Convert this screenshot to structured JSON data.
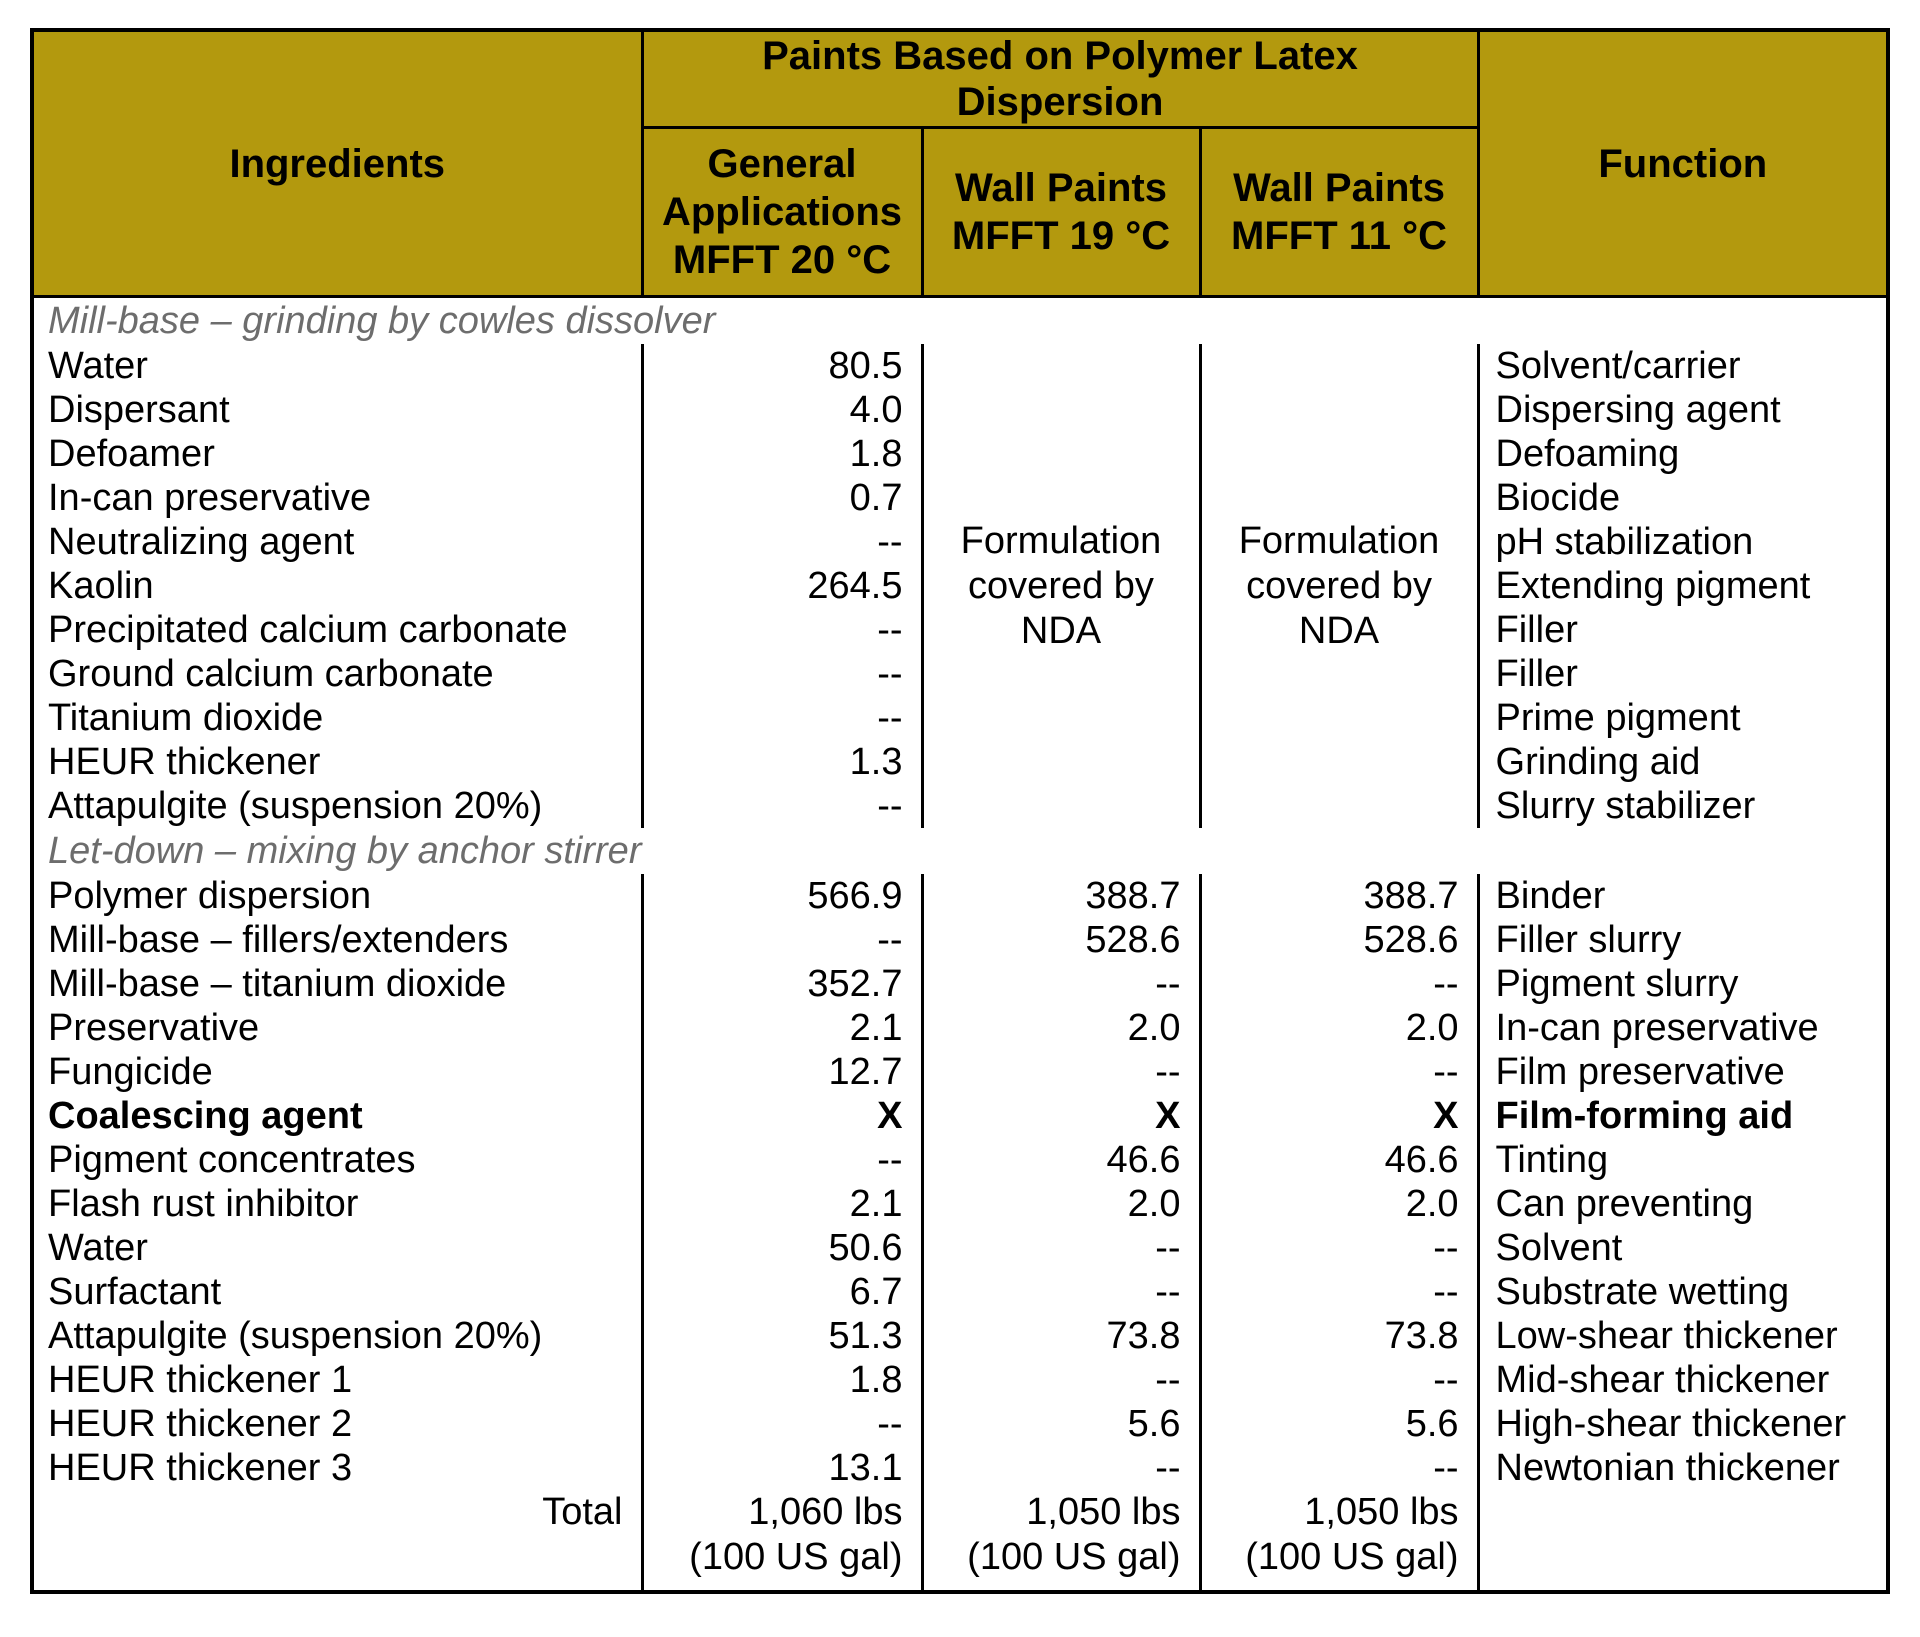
{
  "colors": {
    "header_bg": "#B3990E",
    "border": "#000000",
    "section_title_text": "#6D6D6D"
  },
  "header": {
    "ingredients_label": "Ingredients",
    "group_label": "Paints Based on Polymer Latex\nDispersion",
    "columns": [
      "General\nApplications\nMFFT 20 °C",
      "Wall Paints\nMFFT 19 °C",
      "Wall Paints\nMFFT 11 °C"
    ],
    "function_label": "Function"
  },
  "nda_text": "Formulation\ncovered by\nNDA",
  "sections": [
    {
      "title": "Mill-base – grinding by cowles dissolver",
      "rows": [
        {
          "ingredient": "Water",
          "v1": "80.5",
          "fn": "Solvent/carrier"
        },
        {
          "ingredient": "Dispersant",
          "v1": "4.0",
          "fn": "Dispersing agent"
        },
        {
          "ingredient": "Defoamer",
          "v1": "1.8",
          "fn": "Defoaming"
        },
        {
          "ingredient": "In-can preservative",
          "v1": "0.7",
          "fn": "Biocide"
        },
        {
          "ingredient": "Neutralizing agent",
          "v1": "--",
          "fn": "pH stabilization"
        },
        {
          "ingredient": "Kaolin",
          "v1": "264.5",
          "fn": "Extending pigment"
        },
        {
          "ingredient": "Precipitated calcium carbonate",
          "v1": "--",
          "fn": "Filler"
        },
        {
          "ingredient": "Ground calcium carbonate",
          "v1": "--",
          "fn": "Filler"
        },
        {
          "ingredient": "Titanium dioxide",
          "v1": "--",
          "fn": "Prime pigment"
        },
        {
          "ingredient": "HEUR thickener",
          "v1": "1.3",
          "fn": "Grinding aid"
        },
        {
          "ingredient": "Attapulgite (suspension 20%)",
          "v1": "--",
          "fn": "Slurry stabilizer"
        }
      ]
    },
    {
      "title": "Let-down – mixing by anchor stirrer",
      "rows": [
        {
          "ingredient": "Polymer dispersion",
          "v1": "566.9",
          "v2": "388.7",
          "v3": "388.7",
          "fn": "Binder"
        },
        {
          "ingredient": "Mill-base – fillers/extenders",
          "v1": "--",
          "v2": "528.6",
          "v3": "528.6",
          "fn": "Filler slurry"
        },
        {
          "ingredient": "Mill-base – titanium dioxide",
          "v1": "352.7",
          "v2": "--",
          "v3": "--",
          "fn": "Pigment slurry"
        },
        {
          "ingredient": "Preservative",
          "v1": "2.1",
          "v2": "2.0",
          "v3": "2.0",
          "fn": "In-can preservative"
        },
        {
          "ingredient": "Fungicide",
          "v1": "12.7",
          "v2": "--",
          "v3": "--",
          "fn": "Film preservative"
        },
        {
          "ingredient": "Coalescing agent",
          "v1": "X",
          "v2": "X",
          "v3": "X",
          "fn": "Film-forming aid"
        },
        {
          "ingredient": "Pigment concentrates",
          "v1": "--",
          "v2": "46.6",
          "v3": "46.6",
          "fn": "Tinting"
        },
        {
          "ingredient": "Flash rust inhibitor",
          "v1": "2.1",
          "v2": "2.0",
          "v3": "2.0",
          "fn": "Can preventing"
        },
        {
          "ingredient": "Water",
          "v1": "50.6",
          "v2": "--",
          "v3": "--",
          "fn": "Solvent"
        },
        {
          "ingredient": "Surfactant",
          "v1": "6.7",
          "v2": "--",
          "v3": "--",
          "fn": "Substrate wetting"
        },
        {
          "ingredient": "Attapulgite (suspension 20%)",
          "v1": "51.3",
          "v2": "73.8",
          "v3": "73.8",
          "fn": "Low-shear thickener"
        },
        {
          "ingredient": "HEUR thickener 1",
          "v1": "1.8",
          "v2": "--",
          "v3": "--",
          "fn": "Mid-shear thickener"
        },
        {
          "ingredient": "HEUR thickener 2",
          "v1": "--",
          "v2": "5.6",
          "v3": "5.6",
          "fn": "High-shear thickener"
        },
        {
          "ingredient": "HEUR thickener 3",
          "v1": "13.1",
          "v2": "--",
          "v3": "--",
          "fn": "Newtonian thickener"
        }
      ]
    }
  ],
  "total": {
    "label": "Total",
    "values": [
      "1,060 lbs\n(100 US gal)",
      "1,050 lbs\n(100 US gal)",
      "1,050 lbs\n(100 US gal)"
    ],
    "function": ""
  }
}
